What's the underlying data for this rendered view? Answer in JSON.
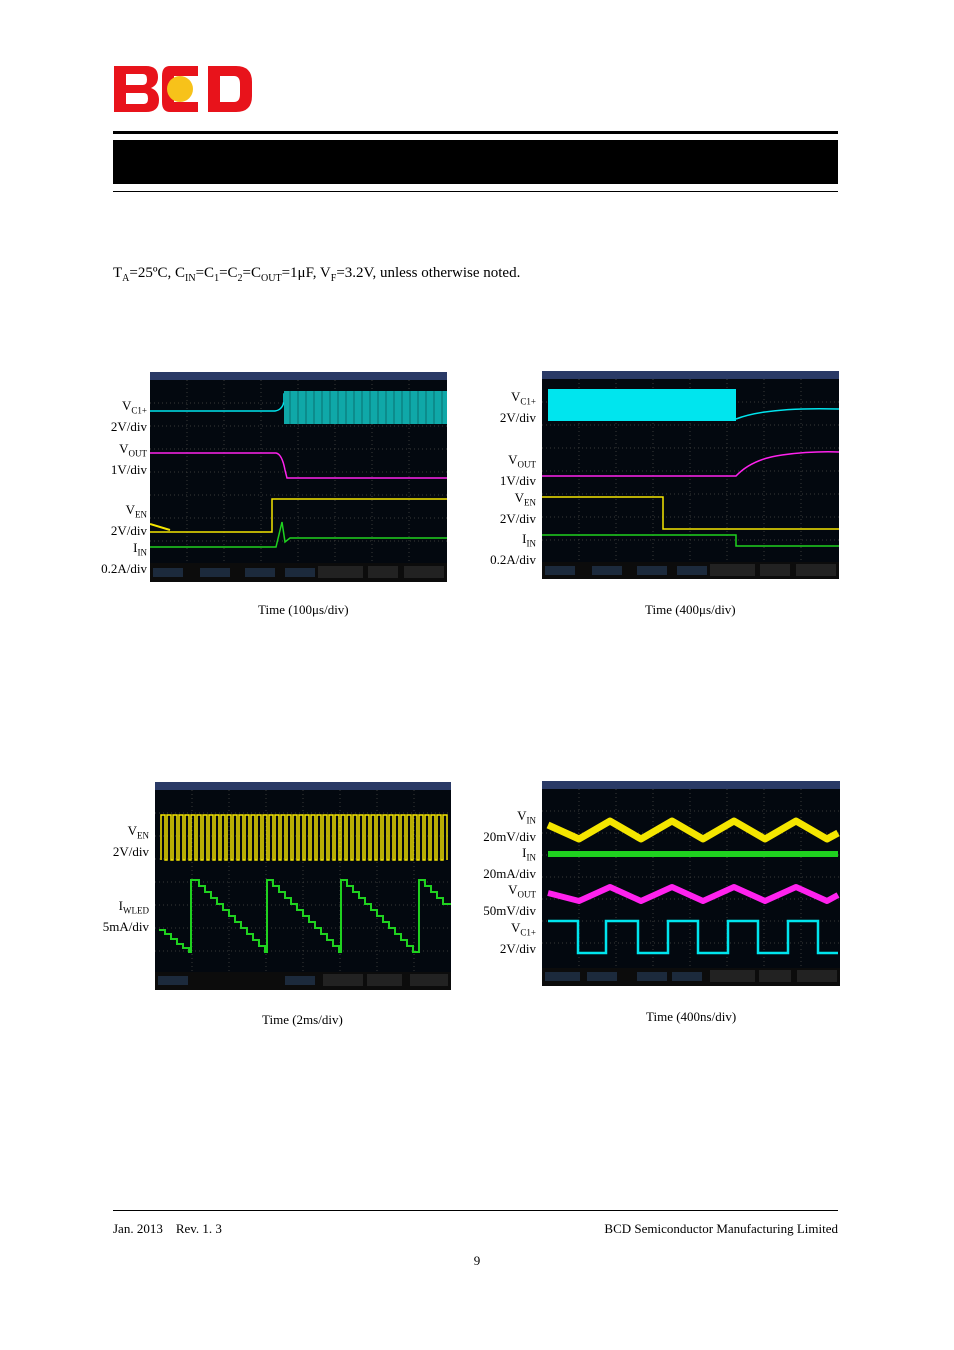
{
  "header": {
    "logo_text": "BCD",
    "logo_colors": {
      "letters": "#e8131b",
      "dot": "#f7c21a"
    }
  },
  "conditions": {
    "t_main": "T",
    "t_sub": "A",
    "t_val": "=25ºC, C",
    "cin_sub": "IN",
    "c1_pre": "=C",
    "c1_sub": "1",
    "c2_pre": "=C",
    "c2_sub": "2",
    "cout_pre": "=C",
    "cout_sub": "OUT",
    "cout_val": "=1μF, V",
    "vf_sub": "F",
    "tail": "=3.2V, unless otherwise noted."
  },
  "waveforms": [
    {
      "labels": [
        {
          "main": "V",
          "sub": "C1+",
          "scale": "2V/div"
        },
        {
          "main": "V",
          "sub": "OUT",
          "scale": "1V/div"
        },
        {
          "main": "V",
          "sub": "EN",
          "scale": "2V/div"
        },
        {
          "main": "I",
          "sub": "IN",
          "scale": "0.2A/div"
        }
      ],
      "caption": "Time  (100μs/div)"
    },
    {
      "labels": [
        {
          "main": "V",
          "sub": "C1+",
          "scale": "2V/div"
        },
        {
          "main": "V",
          "sub": "OUT",
          "scale": "1V/div"
        },
        {
          "main": "V",
          "sub": "EN",
          "scale": "2V/div"
        },
        {
          "main": "I",
          "sub": "IN",
          "scale": "0.2A/div"
        }
      ],
      "caption": "Time  (400μs/div)"
    },
    {
      "labels": [
        {
          "main": "V",
          "sub": "EN",
          "scale": "2V/div"
        },
        {
          "main": "I",
          "sub": "WLED",
          "scale": "5mA/div"
        }
      ],
      "caption": "Time  (2ms/div)"
    },
    {
      "labels": [
        {
          "main": "V",
          "sub": "IN",
          "scale": "20mV/div"
        },
        {
          "main": "I",
          "sub": "IN",
          "scale": "20mA/div"
        },
        {
          "main": "V",
          "sub": "OUT",
          "scale": "50mV/div"
        },
        {
          "main": "V",
          "sub": "C1+",
          "scale": "2V/div"
        }
      ],
      "caption": "Time  (400ns/div)"
    }
  ],
  "trace_colors": {
    "ch1": "#f5e600",
    "ch2": "#00e5ee",
    "ch3": "#ff22ee",
    "ch4": "#1fd11f"
  },
  "footer": {
    "date_rev": "Jan. 2013    Rev. 1. 3",
    "company": "BCD Semiconductor Manufacturing Limited",
    "page": "9"
  }
}
